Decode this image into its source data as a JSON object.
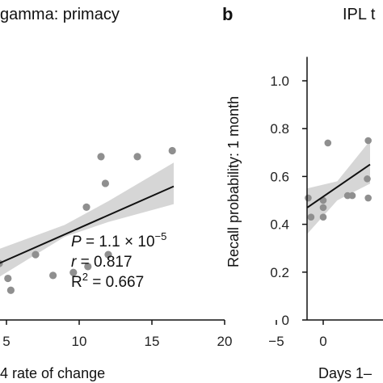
{
  "chart_data": [
    {
      "type": "scatter",
      "title": "gamma: primacy",
      "xlabel": "4 rate of change",
      "ylabel": "",
      "xlim": [
        4,
        20
      ],
      "ylim": [
        0.3,
        1.1
      ],
      "xticks": [
        "5",
        "10",
        "15",
        "20"
      ],
      "points": [
        {
          "x": 4.2,
          "y": 0.52
        },
        {
          "x": 4.5,
          "y": 0.49
        },
        {
          "x": 5.1,
          "y": 0.44
        },
        {
          "x": 5.3,
          "y": 0.4
        },
        {
          "x": 7.0,
          "y": 0.52
        },
        {
          "x": 8.2,
          "y": 0.45
        },
        {
          "x": 9.6,
          "y": 0.46
        },
        {
          "x": 10.6,
          "y": 0.48
        },
        {
          "x": 10.5,
          "y": 0.68
        },
        {
          "x": 11.5,
          "y": 0.85
        },
        {
          "x": 11.8,
          "y": 0.76
        },
        {
          "x": 12.0,
          "y": 0.52
        },
        {
          "x": 14.0,
          "y": 0.85
        },
        {
          "x": 16.4,
          "y": 0.87
        }
      ],
      "fit_line": {
        "x": [
          4,
          16.5
        ],
        "y": [
          0.48,
          0.75
        ]
      },
      "band": {
        "x": [
          4,
          9,
          12,
          16.5
        ],
        "lower": [
          0.43,
          0.58,
          0.63,
          0.69
        ],
        "upper": [
          0.53,
          0.62,
          0.7,
          0.83
        ]
      },
      "annotations": {
        "p_prefix": "P",
        "p_value": " = 1.1 × 10",
        "p_exp": "−5",
        "r_prefix": "r",
        "r_value": " = 0.817",
        "r2_label": "R",
        "r2_exp": "2",
        "r2_value": " = 0.667"
      }
    },
    {
      "type": "scatter",
      "panel_letter": "b",
      "title": "IPL t",
      "xlabel": "Days 1–",
      "ylabel": "Recall probability: 1 month",
      "xlim": [
        -5,
        10
      ],
      "ylim": [
        0,
        1.1
      ],
      "xticks": [
        "−5",
        "0"
      ],
      "yticks": [
        "0",
        "0.2",
        "0.4",
        "0.6",
        "0.8",
        "1.0"
      ],
      "points": [
        {
          "x": -1.6,
          "y": 0.51
        },
        {
          "x": -1.3,
          "y": 0.43
        },
        {
          "x": 0.0,
          "y": 0.5
        },
        {
          "x": 0.0,
          "y": 0.47
        },
        {
          "x": 0.0,
          "y": 0.43
        },
        {
          "x": 0.5,
          "y": 0.74
        },
        {
          "x": 2.6,
          "y": 0.52
        },
        {
          "x": 3.1,
          "y": 0.52
        },
        {
          "x": 4.7,
          "y": 0.59
        },
        {
          "x": 4.8,
          "y": 0.75
        },
        {
          "x": 4.8,
          "y": 0.51
        }
      ],
      "fit_line": {
        "x": [
          -1.7,
          5
        ],
        "y": [
          0.47,
          0.65
        ]
      },
      "band": {
        "x": [
          -1.7,
          1.5,
          5
        ],
        "lower": [
          0.36,
          0.5,
          0.57
        ],
        "upper": [
          0.55,
          0.58,
          0.75
        ]
      }
    }
  ]
}
